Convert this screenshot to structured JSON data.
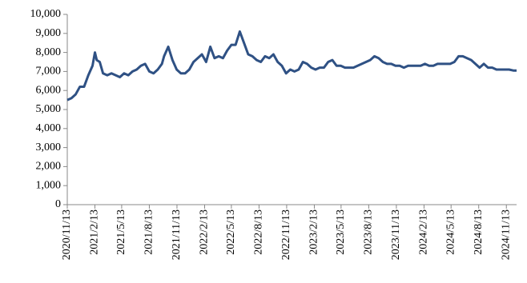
{
  "chart_data": {
    "type": "line",
    "color": "#2f5184",
    "x": [
      "2020/11/13",
      "2020/11/27",
      "2020/12/11",
      "2020/12/25",
      "2021/1/8",
      "2021/1/22",
      "2021/2/5",
      "2021/2/13",
      "2021/2/19",
      "2021/3/1",
      "2021/3/12",
      "2021/3/26",
      "2021/4/9",
      "2021/4/23",
      "2021/5/7",
      "2021/5/21",
      "2021/6/4",
      "2021/6/18",
      "2021/7/2",
      "2021/7/16",
      "2021/7/30",
      "2021/8/13",
      "2021/8/27",
      "2021/9/10",
      "2021/9/24",
      "2021/10/1",
      "2021/10/15",
      "2021/10/29",
      "2021/11/12",
      "2021/11/26",
      "2021/12/10",
      "2021/12/24",
      "2022/1/7",
      "2022/1/21",
      "2022/2/4",
      "2022/2/18",
      "2022/3/4",
      "2022/3/18",
      "2022/4/1",
      "2022/4/15",
      "2022/4/29",
      "2022/5/13",
      "2022/5/27",
      "2022/6/10",
      "2022/6/24",
      "2022/7/8",
      "2022/7/22",
      "2022/8/5",
      "2022/8/19",
      "2022/9/2",
      "2022/9/16",
      "2022/9/30",
      "2022/10/14",
      "2022/10/28",
      "2022/11/11",
      "2022/11/25",
      "2022/12/9",
      "2022/12/23",
      "2023/1/6",
      "2023/1/20",
      "2023/2/3",
      "2023/2/17",
      "2023/3/3",
      "2023/3/17",
      "2023/3/31",
      "2023/4/14",
      "2023/4/28",
      "2023/5/12",
      "2023/5/26",
      "2023/6/9",
      "2023/6/23",
      "2023/7/7",
      "2023/7/21",
      "2023/8/4",
      "2023/8/18",
      "2023/9/1",
      "2023/9/15",
      "2023/9/29",
      "2023/10/13",
      "2023/10/27",
      "2023/11/10",
      "2023/11/24",
      "2023/12/8",
      "2023/12/22",
      "2024/1/5",
      "2024/1/19",
      "2024/2/2",
      "2024/2/16",
      "2024/3/1",
      "2024/3/15",
      "2024/3/29",
      "2024/4/12",
      "2024/4/26",
      "2024/5/10",
      "2024/5/24",
      "2024/6/7",
      "2024/6/21",
      "2024/7/5",
      "2024/7/19",
      "2024/8/2",
      "2024/8/16",
      "2024/8/30",
      "2024/9/13",
      "2024/9/27",
      "2024/10/11",
      "2024/10/25",
      "2024/11/8",
      "2024/11/22",
      "2024/12/6",
      "2024/12/17"
    ],
    "values": [
      5500,
      5600,
      5800,
      6200,
      6200,
      6800,
      7300,
      8000,
      7600,
      7500,
      6900,
      6800,
      6900,
      6800,
      6700,
      6900,
      6800,
      7000,
      7100,
      7300,
      7400,
      7000,
      6900,
      7100,
      7400,
      7800,
      8300,
      7600,
      7100,
      6900,
      6900,
      7100,
      7500,
      7700,
      7900,
      7500,
      8300,
      7700,
      7800,
      7700,
      8100,
      8400,
      8400,
      9100,
      8500,
      7900,
      7800,
      7600,
      7500,
      7800,
      7700,
      7900,
      7500,
      7300,
      6900,
      7100,
      7000,
      7100,
      7500,
      7400,
      7200,
      7100,
      7200,
      7200,
      7500,
      7600,
      7300,
      7300,
      7200,
      7200,
      7200,
      7300,
      7400,
      7500,
      7600,
      7800,
      7700,
      7500,
      7400,
      7400,
      7300,
      7300,
      7200,
      7300,
      7300,
      7300,
      7300,
      7400,
      7300,
      7300,
      7400,
      7400,
      7400,
      7400,
      7500,
      7800,
      7800,
      7700,
      7600,
      7400,
      7200,
      7400,
      7200,
      7200,
      7100,
      7100,
      7100,
      7100,
      7050,
      7050
    ],
    "xlim": [
      "2020/11/13",
      "2024/12/17"
    ],
    "xticks": [
      "2020/11/13",
      "2021/2/13",
      "2021/5/13",
      "2021/8/13",
      "2021/11/13",
      "2022/2/13",
      "2022/5/13",
      "2022/8/13",
      "2022/11/13",
      "2023/2/13",
      "2023/5/13",
      "2023/8/13",
      "2023/11/13",
      "2024/2/13",
      "2024/5/13",
      "2024/8/13",
      "2024/11/13"
    ],
    "ylim": [
      0,
      10000
    ],
    "yticks": [
      0,
      {
        "value": 1000,
        "label": "1,000"
      },
      {
        "value": 2000,
        "label": "2,000"
      },
      {
        "value": 3000,
        "label": "3,000"
      },
      {
        "value": 4000,
        "label": "4,000"
      },
      {
        "value": 5000,
        "label": "5,000"
      },
      {
        "value": 6000,
        "label": "6,000"
      },
      {
        "value": 7000,
        "label": "7,000"
      },
      {
        "value": 8000,
        "label": "8,000"
      },
      {
        "value": 9000,
        "label": "9,000"
      },
      {
        "value": 10000,
        "label": "10,000"
      }
    ],
    "grid": false
  }
}
